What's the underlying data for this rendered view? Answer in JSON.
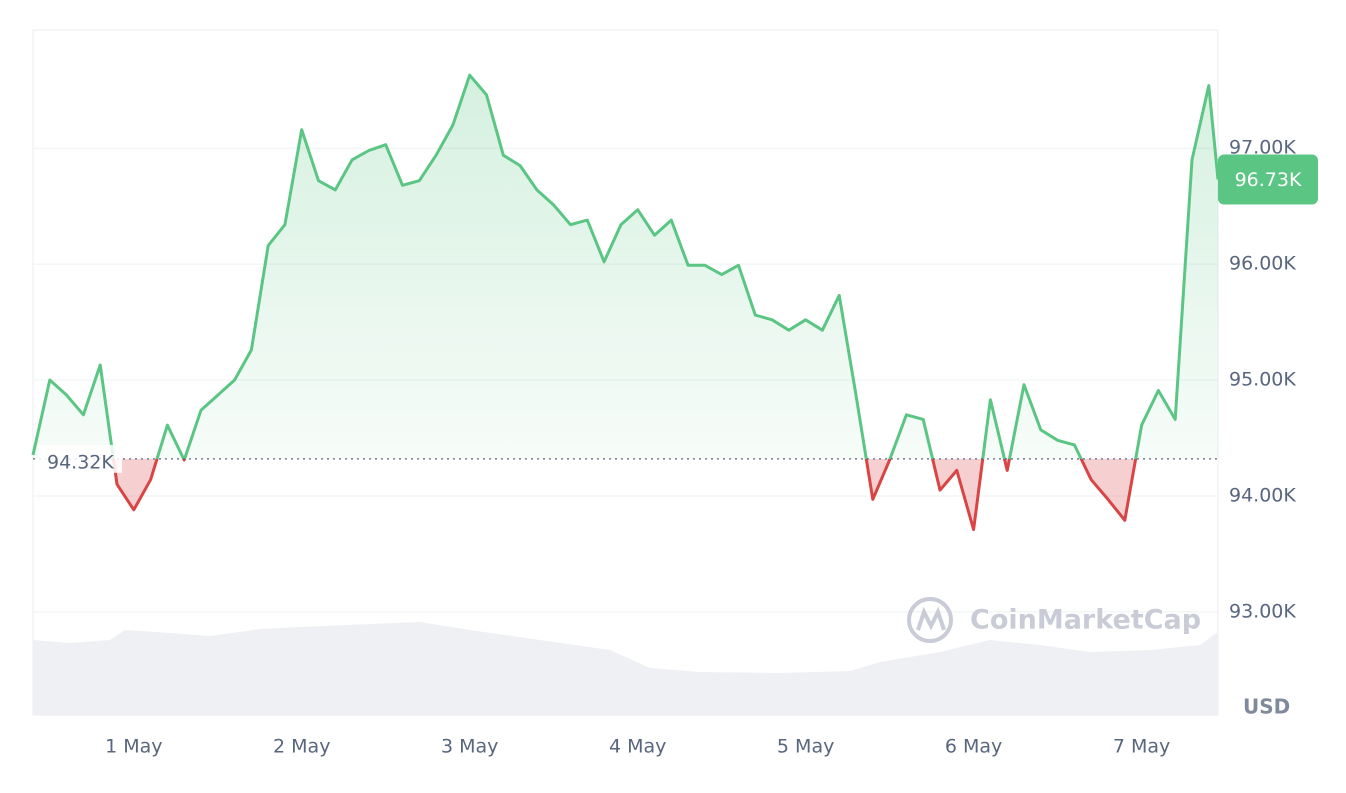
{
  "chart_data": {
    "type": "line",
    "x": [
      0.4,
      0.5,
      0.6,
      0.7,
      0.8,
      0.9,
      1.0,
      1.1,
      1.2,
      1.3,
      1.4,
      1.5,
      1.6,
      1.7,
      1.8,
      1.9,
      2.0,
      2.1,
      2.2,
      2.3,
      2.4,
      2.5,
      2.6,
      2.7,
      2.8,
      2.9,
      3.0,
      3.1,
      3.2,
      3.3,
      3.4,
      3.5,
      3.6,
      3.7,
      3.8,
      3.9,
      4.0,
      4.1,
      4.2,
      4.3,
      4.4,
      4.5,
      4.6,
      4.7,
      4.8,
      4.9,
      5.0,
      5.1,
      5.2,
      5.3,
      5.4,
      5.5,
      5.6,
      5.7,
      5.8,
      5.9,
      6.0,
      6.1,
      6.2,
      6.3,
      6.4,
      6.5,
      6.6,
      6.7,
      6.8,
      6.9,
      7.0,
      7.1,
      7.2,
      7.3,
      7.4,
      7.455
    ],
    "series": [
      {
        "color": "#5bc584",
        "down_color": "#d94545",
        "values": [
          94354,
          95000,
          94870,
          94700,
          95130,
          94100,
          93880,
          94140,
          94610,
          94310,
          94740,
          94870,
          95000,
          95260,
          96160,
          96340,
          97160,
          96720,
          96640,
          96900,
          96980,
          97030,
          96680,
          96720,
          96940,
          97200,
          97630,
          97460,
          96940,
          96850,
          96640,
          96510,
          96340,
          96380,
          96020,
          96340,
          96470,
          96250,
          96380,
          95990,
          95990,
          95910,
          95990,
          95560,
          95520,
          95430,
          95520,
          95430,
          95730,
          94870,
          93970,
          94310,
          94700,
          94660,
          94050,
          94220,
          93710,
          94830,
          94220,
          94960,
          94570,
          94480,
          94440,
          94140,
          93970,
          93790,
          94610,
          94910,
          94660,
          96900,
          97540,
          96730
        ]
      }
    ],
    "xlim": [
      0.4,
      7.455
    ],
    "xticks": [
      {
        "value": 1,
        "label": "1 May"
      },
      {
        "value": 2,
        "label": "2 May"
      },
      {
        "value": 3,
        "label": "3 May"
      },
      {
        "value": 4,
        "label": "4 May"
      },
      {
        "value": 5,
        "label": "5 May"
      },
      {
        "value": 6,
        "label": "6 May"
      },
      {
        "value": 7,
        "label": "7 May"
      }
    ],
    "ylim": [
      92110,
      98020
    ],
    "yticks": [
      {
        "value": 93000,
        "label": "93.00K"
      },
      {
        "value": 94000,
        "label": "94.00K"
      },
      {
        "value": 95000,
        "label": "95.00K"
      },
      {
        "value": 96000,
        "label": "96.00K"
      },
      {
        "value": 97000,
        "label": "97.00K"
      }
    ],
    "baseline": {
      "value": 94320,
      "label": "94.32K"
    },
    "last_label": {
      "value": 96730,
      "label": "96.73K"
    },
    "unit_label": "USD",
    "watermark": "CoinMarketCap",
    "grid": true
  }
}
